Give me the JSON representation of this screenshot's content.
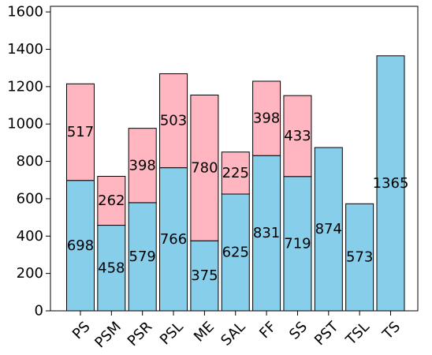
{
  "chart_data": {
    "type": "bar",
    "stacked": true,
    "title": "",
    "xlabel": "",
    "ylabel": "",
    "ylim": [
      0,
      1630
    ],
    "yticks": [
      0,
      200,
      400,
      600,
      800,
      1000,
      1200,
      1400,
      1600
    ],
    "grid": false,
    "categories": [
      "PS",
      "PSM",
      "PSR",
      "PSL",
      "ME",
      "SAL",
      "FF",
      "SS",
      "PST",
      "TSL",
      "TS"
    ],
    "series": [
      {
        "color": "#87CEEB",
        "values": [
          698,
          458,
          579,
          766,
          375,
          625,
          831,
          719,
          874,
          573,
          1365
        ]
      },
      {
        "color": "#FFB6C1",
        "values": [
          517,
          262,
          398,
          503,
          780,
          225,
          398,
          433,
          null,
          null,
          null
        ]
      }
    ]
  }
}
